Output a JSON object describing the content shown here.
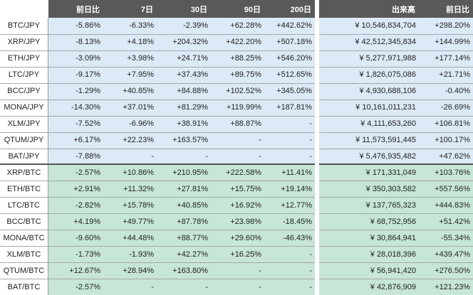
{
  "table": {
    "columns": [
      "前日比",
      "7日",
      "30日",
      "90日",
      "200日",
      "出来高",
      "前日比"
    ],
    "groups": [
      {
        "color": "#dce9f6",
        "rows": [
          {
            "pair": "BTC/JPY",
            "values": [
              "-5.86%",
              "-6.33%",
              "-2.39%",
              "+62.28%",
              "+442.62%",
              "¥ 10,546,834,704",
              "+298.20%"
            ]
          },
          {
            "pair": "XRP/JPY",
            "values": [
              "-8.13%",
              "+4.18%",
              "+204.32%",
              "+422.20%",
              "+507.18%",
              "¥ 42,512,345,834",
              "+144.99%"
            ]
          },
          {
            "pair": "ETH/JPY",
            "values": [
              "-3.09%",
              "+3.98%",
              "+24.71%",
              "+88.25%",
              "+546.20%",
              "¥ 5,277,971,988",
              "+177.14%"
            ]
          },
          {
            "pair": "LTC/JPY",
            "values": [
              "-9.17%",
              "+7.95%",
              "+37.43%",
              "+89.75%",
              "+512.65%",
              "¥ 1,826,075,086",
              "+21.71%"
            ]
          },
          {
            "pair": "BCC/JPY",
            "values": [
              "-1.29%",
              "+40.85%",
              "+84.88%",
              "+102.52%",
              "+345.05%",
              "¥ 4,930,688,106",
              "-0.40%"
            ]
          },
          {
            "pair": "MONA/JPY",
            "values": [
              "-14.30%",
              "+37.01%",
              "+81.29%",
              "+119.99%",
              "+187.81%",
              "¥ 10,161,011,231",
              "-26.69%"
            ]
          },
          {
            "pair": "XLM/JPY",
            "values": [
              "-7.52%",
              "-6.96%",
              "+38.91%",
              "+88.87%",
              "-",
              "¥ 4,111,653,260",
              "+106.81%"
            ]
          },
          {
            "pair": "QTUM/JPY",
            "values": [
              "+6.17%",
              "+22.23%",
              "+163.57%",
              "-",
              "-",
              "¥ 11,573,591,445",
              "+100.17%"
            ]
          },
          {
            "pair": "BAT/JPY",
            "values": [
              "-7.88%",
              "-",
              "-",
              "-",
              "-",
              "¥ 5,476,935,482",
              "+47.62%"
            ]
          }
        ]
      },
      {
        "color": "#c7e6d7",
        "rows": [
          {
            "pair": "XRP/BTC",
            "values": [
              "-2.57%",
              "+10.86%",
              "+210.95%",
              "+222.58%",
              "+11.41%",
              "¥ 171,331,049",
              "+103.76%"
            ]
          },
          {
            "pair": "ETH/BTC",
            "values": [
              "+2.91%",
              "+11.32%",
              "+27.81%",
              "+15.75%",
              "+19.14%",
              "¥ 350,303,582",
              "+557.56%"
            ]
          },
          {
            "pair": "LTC/BTC",
            "values": [
              "-2.82%",
              "+15.78%",
              "+40.85%",
              "+16.92%",
              "+12.77%",
              "¥ 137,765,323",
              "+444.83%"
            ]
          },
          {
            "pair": "BCC/BTC",
            "values": [
              "+4.19%",
              "+49.77%",
              "+87.78%",
              "+23.98%",
              "-18.45%",
              "¥ 68,752,956",
              "+51.42%"
            ]
          },
          {
            "pair": "MONA/BTC",
            "values": [
              "-9.60%",
              "+44.48%",
              "+88.77%",
              "+29.60%",
              "-46.43%",
              "¥ 30,864,941",
              "-55.34%"
            ]
          },
          {
            "pair": "XLM/BTC",
            "values": [
              "-1.73%",
              "-1.93%",
              "+42.27%",
              "+16.25%",
              "-",
              "¥ 28,018,396",
              "+439.47%"
            ]
          },
          {
            "pair": "QTUM/BTC",
            "values": [
              "+12.67%",
              "+28.94%",
              "+163.80%",
              "-",
              "-",
              "¥ 56,941,420",
              "+276.50%"
            ]
          },
          {
            "pair": "BAT/BTC",
            "values": [
              "-2.57%",
              "-",
              "-",
              "-",
              "-",
              "¥ 42,876,909",
              "+121.23%"
            ]
          }
        ]
      }
    ]
  }
}
